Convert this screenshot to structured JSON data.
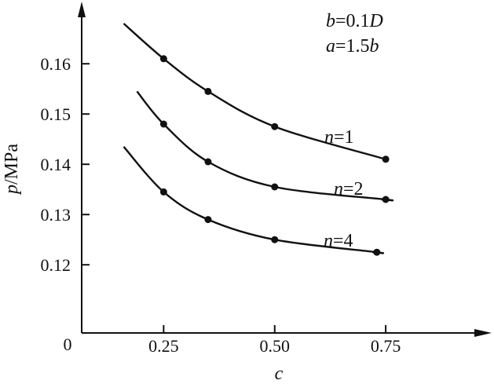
{
  "chart_data": {
    "type": "line",
    "title": "",
    "xlabel": {
      "var": "c",
      "unit": ""
    },
    "ylabel": {
      "var": "p",
      "unit": "/MPa"
    },
    "origin_label": "0",
    "xlim": [
      0,
      0.85
    ],
    "ylim": [
      0.107,
      0.17
    ],
    "x_ticks": [
      0.25,
      0.5,
      0.75
    ],
    "x_tick_labels": [
      "0.25",
      "0.50",
      "0.75"
    ],
    "y_ticks": [
      0.12,
      0.13,
      0.14,
      0.15,
      0.16
    ],
    "y_tick_labels": [
      "0.12",
      "0.13",
      "0.14",
      "0.15",
      "0.16"
    ],
    "grid": false,
    "legend": "none",
    "annotations": [
      {
        "id": "b",
        "parts": [
          {
            "text": "b",
            "italic": true
          },
          {
            "text": "=0.1",
            "italic": false
          },
          {
            "text": "D",
            "italic": true
          }
        ]
      },
      {
        "id": "a",
        "parts": [
          {
            "text": "a",
            "italic": true
          },
          {
            "text": "=1.5",
            "italic": false
          },
          {
            "text": "b",
            "italic": true
          }
        ]
      }
    ],
    "series": [
      {
        "name": "n=1",
        "label": {
          "var": "n",
          "eq": "=1"
        },
        "x": [
          0.25,
          0.35,
          0.5,
          0.75
        ],
        "y": [
          0.161,
          0.1545,
          0.1475,
          0.141
        ],
        "curve_start": [
          0.16,
          0.168
        ],
        "curve_end": [
          0.75,
          0.141
        ]
      },
      {
        "name": "n=2",
        "label": {
          "var": "n",
          "eq": "=2"
        },
        "x": [
          0.25,
          0.35,
          0.5,
          0.75
        ],
        "y": [
          0.148,
          0.1405,
          0.1355,
          0.133
        ],
        "curve_start": [
          0.19,
          0.1545
        ],
        "curve_end": [
          0.74,
          0.133
        ]
      },
      {
        "name": "n=4",
        "label": {
          "var": "n",
          "eq": "=4"
        },
        "x": [
          0.25,
          0.35,
          0.5,
          0.73
        ],
        "y": [
          0.1345,
          0.129,
          0.125,
          0.1225
        ],
        "curve_start": [
          0.16,
          0.1435
        ],
        "curve_end": [
          0.72,
          0.1225
        ]
      }
    ]
  }
}
